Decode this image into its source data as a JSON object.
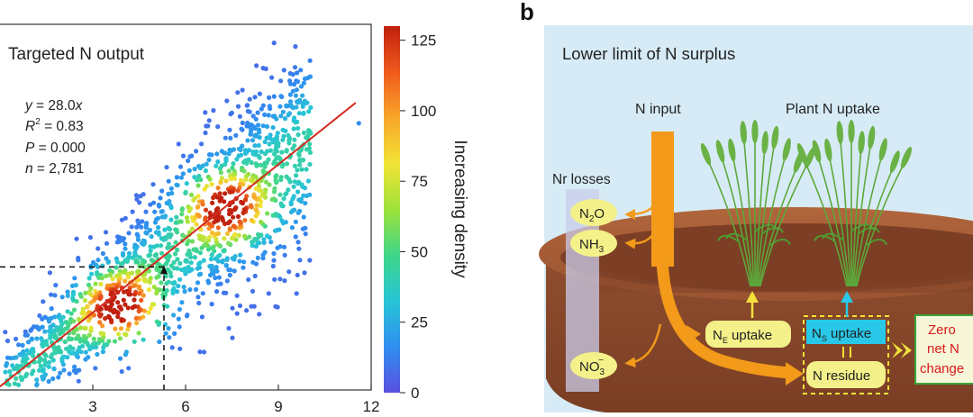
{
  "panel_a": {
    "title": "Targeted N output",
    "stats": {
      "eq_y": "y",
      "eq_rest": " = 28.0",
      "eq_x": "x",
      "r2_r": "R",
      "r2_sup": "2",
      "r2_val": " = 0.83",
      "p_p": "P",
      "p_val": " = 0.000",
      "n_n": "n",
      "n_val": " = 2,781"
    },
    "colorbar": {
      "label": "Increasing density",
      "ticks": [
        "0",
        "25",
        "50",
        "75",
        "100",
        "125"
      ],
      "tick_values": [
        0,
        25,
        50,
        75,
        100,
        125
      ],
      "max": 130,
      "colors": [
        "#5a4fe0",
        "#2f8ff0",
        "#27c5d6",
        "#3fd68a",
        "#9ee23a",
        "#f1e436",
        "#f8a62a",
        "#ef5a1d",
        "#c0200e"
      ]
    },
    "fit_color": "#d42a1f",
    "chart_data": {
      "type": "scatter",
      "xlabel": "",
      "ylabel": "",
      "x_ticks": [
        "3",
        "6",
        "9",
        "12"
      ],
      "x_tick_values": [
        3,
        6,
        9,
        12
      ],
      "xlim": [
        0,
        12
      ],
      "ylim": [
        0,
        16
      ],
      "fit": {
        "slope": 28.0,
        "r2": 0.83,
        "p": "0.000",
        "n": 2781
      },
      "clusters": [
        {
          "x": 3.9,
          "y": 3.6,
          "density": 120
        },
        {
          "x": 7.3,
          "y": 8.0,
          "density": 115
        }
      ],
      "reference_point": {
        "x": 5.3,
        "y": 5.4
      },
      "outlier": {
        "x": 11.6,
        "y": 11.7
      }
    }
  },
  "panel_b": {
    "letter": "b",
    "title": "Lower limit of N surplus",
    "n_input": "N input",
    "plant_uptake": "Plant N uptake",
    "nr_losses": "Nr losses",
    "n2o": {
      "base": "N",
      "sub": "2",
      "tail": "O"
    },
    "nh3": {
      "base": "NH",
      "sub": "3"
    },
    "no3": {
      "base": "NO",
      "sub": "3",
      "sup": "−"
    },
    "ne_uptake": {
      "base": "N",
      "sub": "E",
      "tail": " uptake"
    },
    "ns_uptake": {
      "base": "N",
      "sub": "S",
      "tail": " uptake"
    },
    "n_residue": "N residue",
    "zero": [
      "Zero",
      "net N",
      "change"
    ],
    "colors": {
      "soil": "#8a4a2c",
      "soil_rim": "#a45a36",
      "sky": "#d7ebf6",
      "arrow": "#f39a1a",
      "yellow": "#f4f08a",
      "cyan": "#29c8e8",
      "wheat": "#5da83a"
    }
  }
}
